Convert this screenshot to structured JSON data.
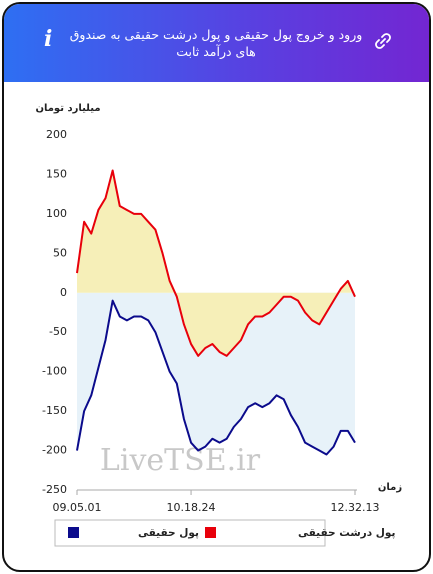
{
  "header_title": "ورود و خروج پول حقیقی و پول درشت حقیقی به صندوق های درآمد ثابت",
  "chart_data": {
    "type": "line",
    "y_label": "میلیارد تومان",
    "x_label": "زمان",
    "watermark": "LiveTSE.ir",
    "categories": [
      "09.05.01",
      null,
      null,
      null,
      null,
      null,
      null,
      null,
      null,
      null,
      null,
      null,
      null,
      null,
      null,
      null,
      "10.18.24",
      null,
      null,
      null,
      null,
      null,
      null,
      null,
      null,
      null,
      null,
      null,
      null,
      null,
      null,
      null,
      null,
      null,
      null,
      null,
      null,
      null,
      null,
      "12.32.13"
    ],
    "series": [
      {
        "name": "پول درشت حقیقی",
        "color": "#e8000b",
        "fill": "#f6efb8",
        "values": [
          25,
          90,
          75,
          105,
          120,
          155,
          110,
          105,
          100,
          100,
          90,
          80,
          50,
          15,
          -5,
          -40,
          -65,
          -80,
          -70,
          -65,
          -75,
          -80,
          -70,
          -60,
          -40,
          -30,
          -30,
          -25,
          -15,
          -5,
          -5,
          -10,
          -25,
          -35,
          -40,
          -25,
          -10,
          5,
          15,
          -5
        ]
      },
      {
        "name": "پول حقیقی",
        "color": "#0b0b8c",
        "fill": "#e7f2f9",
        "values": [
          -200,
          -150,
          -130,
          -95,
          -60,
          -10,
          -30,
          -35,
          -30,
          -30,
          -35,
          -50,
          -75,
          -100,
          -115,
          -160,
          -190,
          -200,
          -195,
          -185,
          -190,
          -185,
          -170,
          -160,
          -145,
          -140,
          -145,
          -140,
          -130,
          -135,
          -155,
          -170,
          -190,
          -195,
          -200,
          -205,
          -195,
          -175,
          -175,
          -190
        ]
      }
    ],
    "ylim": [
      -250,
      200
    ],
    "yticks": [
      -250,
      -200,
      -150,
      -100,
      -50,
      0,
      50,
      100,
      150,
      200
    ],
    "grid": false
  }
}
